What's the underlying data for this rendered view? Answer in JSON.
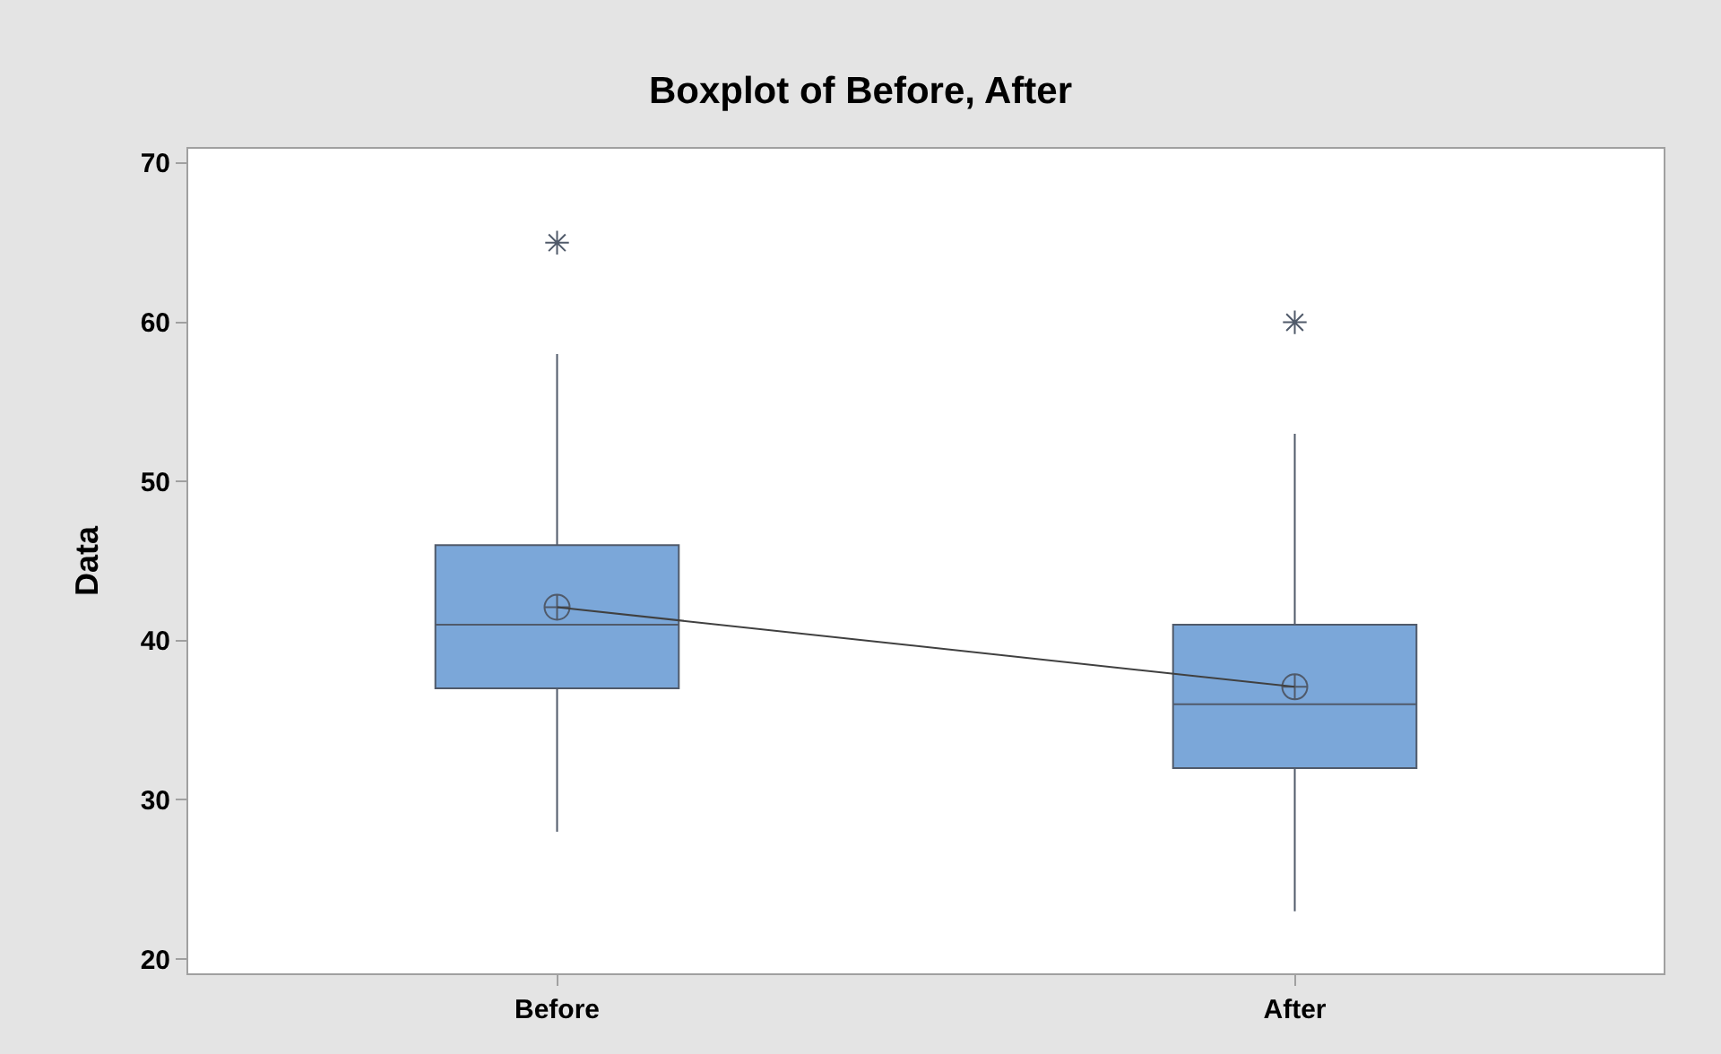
{
  "chart_data": {
    "type": "box",
    "title": "Boxplot of Before, After",
    "ylabel": "Data",
    "categories": [
      "Before",
      "After"
    ],
    "color": "#7ba7d9",
    "boxes": [
      {
        "low": 28,
        "q1": 37,
        "median": 41,
        "q3": 46,
        "high": 58,
        "mean": 42.1,
        "outliers": [
          65
        ]
      },
      {
        "low": 23,
        "q1": 32,
        "median": 36,
        "q3": 41,
        "high": 53,
        "mean": 37.1,
        "outliers": [
          60
        ]
      }
    ],
    "series": [
      {
        "type": "line",
        "color": "#404040",
        "values": [
          42.1,
          37.1
        ]
      }
    ],
    "ylim": [
      19.1,
      70.9
    ],
    "yticks": [
      20,
      30,
      40,
      50,
      60,
      70
    ],
    "grid": false
  }
}
